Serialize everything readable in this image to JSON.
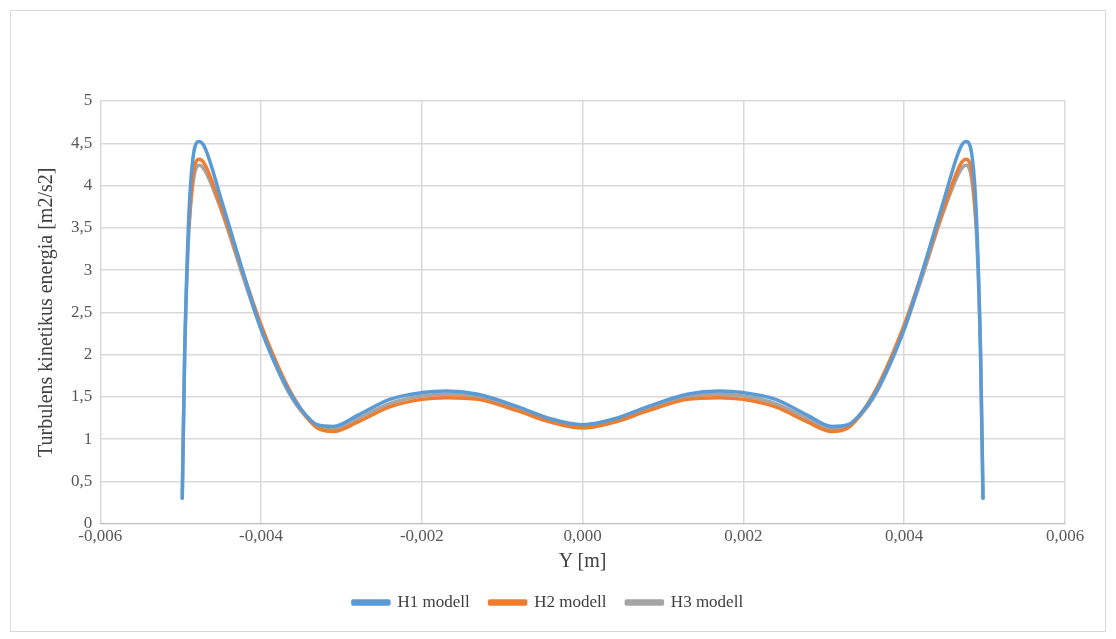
{
  "chart_data": {
    "type": "line",
    "xlabel": "Y [m]",
    "ylabel": "Turbulens kinetikus energia [m2/s2]",
    "x": [
      -0.00498,
      -0.00495,
      -0.0049,
      -0.00485,
      -0.00477,
      -0.0047,
      -0.0045,
      -0.0042,
      -0.004,
      -0.0037,
      -0.0035,
      -0.0033,
      -0.0031,
      -0.0028,
      -0.0024,
      -0.002,
      -0.0017,
      -0.0013,
      -0.0008,
      -0.0004,
      0,
      0.0004,
      0.0008,
      0.0013,
      0.0017,
      0.002,
      0.0024,
      0.0028,
      0.0031,
      0.0033,
      0.0035,
      0.0037,
      0.004,
      0.0042,
      0.0045,
      0.0047,
      0.00477,
      0.00485,
      0.0049,
      0.00495,
      0.00498
    ],
    "series": [
      {
        "name": "H1 modell",
        "color": "#5b9bd5",
        "values": [
          0.3,
          2.0,
          3.6,
          4.3,
          4.52,
          4.45,
          3.85,
          2.9,
          2.3,
          1.65,
          1.35,
          1.17,
          1.15,
          1.28,
          1.47,
          1.55,
          1.57,
          1.53,
          1.38,
          1.24,
          1.17,
          1.24,
          1.38,
          1.53,
          1.57,
          1.55,
          1.47,
          1.28,
          1.15,
          1.17,
          1.35,
          1.65,
          2.3,
          2.9,
          3.85,
          4.45,
          4.52,
          4.3,
          3.6,
          2.0,
          0.3
        ]
      },
      {
        "name": "H2 modell",
        "color": "#ed7d31",
        "values": [
          null,
          null,
          3.5,
          4.1,
          4.31,
          4.25,
          3.75,
          2.9,
          2.35,
          1.68,
          1.35,
          1.13,
          1.09,
          1.2,
          1.38,
          1.47,
          1.49,
          1.47,
          1.33,
          1.2,
          1.13,
          1.2,
          1.33,
          1.47,
          1.49,
          1.47,
          1.38,
          1.2,
          1.09,
          1.13,
          1.35,
          1.68,
          2.35,
          2.9,
          3.75,
          4.25,
          4.31,
          4.1,
          3.5,
          null,
          null
        ]
      },
      {
        "name": "H3 modell",
        "color": "#a5a5a5",
        "values": [
          0.3,
          2.0,
          3.4,
          4.0,
          4.24,
          4.18,
          3.72,
          2.85,
          2.3,
          1.63,
          1.33,
          1.15,
          1.12,
          1.24,
          1.42,
          1.51,
          1.53,
          1.5,
          1.36,
          1.23,
          1.16,
          1.23,
          1.36,
          1.5,
          1.53,
          1.51,
          1.42,
          1.24,
          1.12,
          1.15,
          1.33,
          1.63,
          2.3,
          2.85,
          3.72,
          4.18,
          4.24,
          4.0,
          3.4,
          2.0,
          0.3
        ]
      }
    ],
    "xlim": [
      -0.006,
      0.006
    ],
    "xticks": [
      {
        "value": -0.006,
        "label": "-0,006"
      },
      {
        "value": -0.004,
        "label": "-0,004"
      },
      {
        "value": -0.002,
        "label": "-0,002"
      },
      {
        "value": 0,
        "label": "0,000"
      },
      {
        "value": 0.002,
        "label": "0,002"
      },
      {
        "value": 0.004,
        "label": "0,004"
      },
      {
        "value": 0.006,
        "label": "0,006"
      }
    ],
    "ylim": [
      0,
      5
    ],
    "yticks": [
      0,
      {
        "value": 0.5,
        "label": "0,5"
      },
      1,
      {
        "value": 1.5,
        "label": "1,5"
      },
      2,
      {
        "value": 2.5,
        "label": "2,5"
      },
      3,
      {
        "value": 3.5,
        "label": "3,5"
      },
      4,
      {
        "value": 4.5,
        "label": "4,5"
      },
      5
    ],
    "grid": true,
    "legend": "bottom",
    "marker": "none",
    "line_style": "solid"
  }
}
